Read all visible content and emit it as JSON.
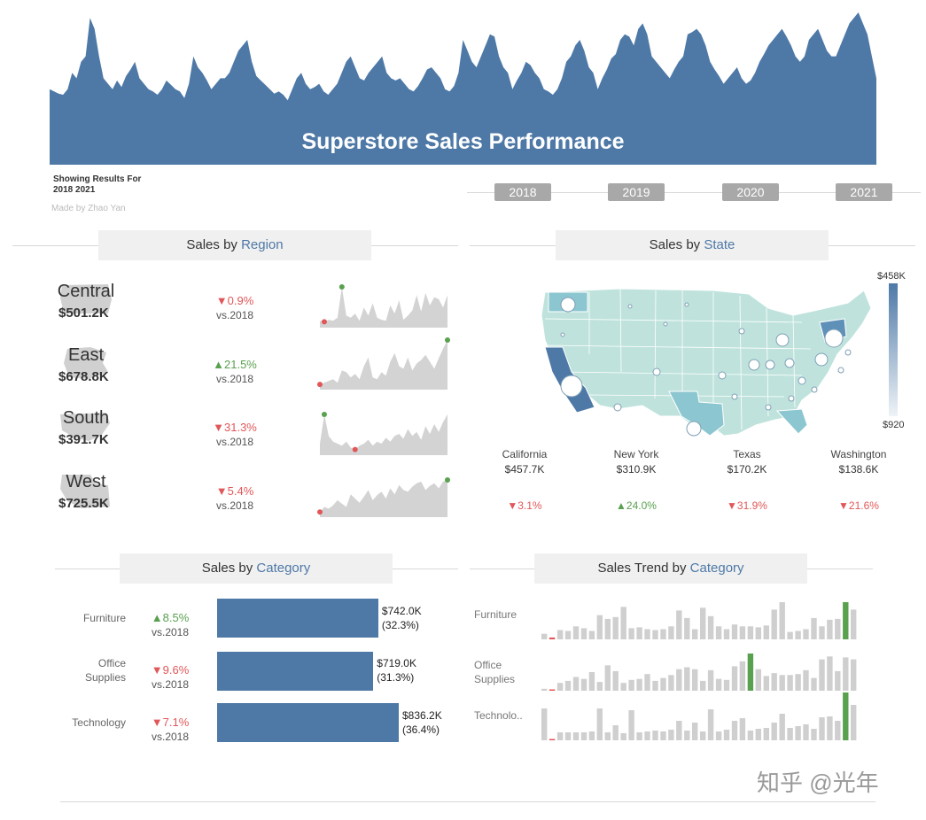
{
  "header": {
    "title": "Superstore Sales Performance",
    "showing_label": "Showing Results For",
    "showing_value": "2018 2021",
    "credit": "Made by Zhao Yan",
    "area_values": [
      30,
      28,
      26,
      25,
      30,
      45,
      40,
      55,
      60,
      95,
      85,
      60,
      40,
      35,
      30,
      38,
      32,
      42,
      48,
      55,
      40,
      35,
      30,
      28,
      25,
      30,
      38,
      34,
      30,
      28,
      22,
      35,
      60,
      50,
      45,
      38,
      30,
      35,
      40,
      40,
      45,
      55,
      65,
      70,
      75,
      55,
      42,
      38,
      34,
      30,
      26,
      28,
      25,
      20,
      30,
      40,
      45,
      35,
      30,
      32,
      35,
      28,
      25,
      30,
      35,
      45,
      55,
      60,
      50,
      40,
      38,
      45,
      50,
      55,
      60,
      45,
      40,
      38,
      40,
      35,
      30,
      28,
      33,
      40,
      48,
      50,
      45,
      40,
      30,
      28,
      33,
      45,
      75,
      65,
      55,
      50,
      60,
      70,
      80,
      78,
      60,
      50,
      45,
      30,
      38,
      45,
      55,
      52,
      45,
      40,
      30,
      28,
      25,
      30,
      40,
      55,
      60,
      70,
      75,
      65,
      50,
      45,
      30,
      40,
      48,
      58,
      62,
      75,
      80,
      78,
      70,
      85,
      90,
      80,
      60,
      55,
      50,
      45,
      40,
      48,
      55,
      60,
      80,
      82,
      85,
      80,
      70,
      55,
      48,
      42,
      35,
      40,
      45,
      50,
      40,
      35,
      38,
      45,
      55,
      62,
      70,
      75,
      80,
      85,
      78,
      70,
      60,
      55,
      60,
      75,
      80,
      85,
      75,
      65,
      60,
      60,
      70,
      80,
      90,
      95,
      100,
      90,
      80,
      60,
      40
    ]
  },
  "years": [
    "2018",
    "2019",
    "2020",
    "2021"
  ],
  "region_panel": {
    "title_prefix": "Sales by ",
    "title_accent": "Region",
    "regions": [
      {
        "name": "Central",
        "value": "$501.2K",
        "change": "▼0.9%",
        "direction": "down",
        "vs": "vs.2018",
        "spark": [
          5,
          4,
          6,
          5,
          8,
          38,
          10,
          8,
          12,
          5,
          18,
          10,
          22,
          8,
          6,
          5,
          20,
          12,
          25,
          6,
          10,
          15,
          30,
          14,
          32,
          20,
          28,
          26,
          18,
          30
        ]
      },
      {
        "name": "East",
        "value": "$678.8K",
        "change": "▲21.5%",
        "direction": "up",
        "vs": "vs.2018",
        "spark": [
          4,
          6,
          8,
          10,
          6,
          20,
          18,
          12,
          16,
          10,
          25,
          35,
          12,
          10,
          18,
          14,
          30,
          40,
          25,
          22,
          35,
          20,
          28,
          32,
          38,
          30,
          22,
          34,
          45,
          55
        ]
      },
      {
        "name": "South",
        "value": "$391.7K",
        "change": "▼31.3%",
        "direction": "down",
        "vs": "vs.2018",
        "spark": [
          10,
          40,
          18,
          12,
          10,
          8,
          12,
          6,
          4,
          8,
          10,
          14,
          8,
          12,
          10,
          16,
          12,
          18,
          20,
          15,
          25,
          18,
          22,
          14,
          28,
          20,
          30,
          22,
          32,
          40
        ]
      },
      {
        "name": "West",
        "value": "$725.5K",
        "change": "▼5.4%",
        "direction": "down",
        "vs": "vs.2018",
        "spark": [
          4,
          10,
          8,
          12,
          18,
          14,
          10,
          25,
          20,
          15,
          22,
          30,
          18,
          24,
          28,
          20,
          32,
          25,
          36,
          30,
          28,
          34,
          38,
          40,
          30,
          35,
          38,
          32,
          40,
          42
        ]
      }
    ]
  },
  "state_panel": {
    "title_prefix": "Sales by ",
    "title_accent": "State",
    "legend_max": "$458K",
    "legend_min": "$920",
    "states": [
      {
        "name": "California",
        "value": "$457.7K",
        "change": "▼3.1%",
        "direction": "down"
      },
      {
        "name": "New York",
        "value": "$310.9K",
        "change": "▲24.0%",
        "direction": "up"
      },
      {
        "name": "Texas",
        "value": "$170.2K",
        "change": "▼31.9%",
        "direction": "down"
      },
      {
        "name": "Washington",
        "value": "$138.6K",
        "change": "▼21.6%",
        "direction": "down"
      }
    ]
  },
  "category_panel": {
    "title_prefix": "Sales by ",
    "title_accent": "Category",
    "max_value": 836.2,
    "categories": [
      {
        "name_line1": "Furniture",
        "name_line2": "",
        "change": "▲8.5%",
        "direction": "up",
        "vs": "vs.2018",
        "value": 742.0,
        "value_label": "$742.0K",
        "share": "(32.3%)"
      },
      {
        "name_line1": "Office",
        "name_line2": "Supplies",
        "change": "▼9.6%",
        "direction": "down",
        "vs": "vs.2018",
        "value": 719.0,
        "value_label": "$719.0K",
        "share": "(31.3%)"
      },
      {
        "name_line1": "Technology",
        "name_line2": "",
        "change": "▼7.1%",
        "direction": "down",
        "vs": "vs.2018",
        "value": 836.2,
        "value_label": "$836.2K",
        "share": "(36.4%)"
      }
    ]
  },
  "trend_panel": {
    "title_prefix": "Sales Trend by ",
    "title_accent": "Category",
    "rows": [
      {
        "label_line1": "Furniture",
        "label_line2": "",
        "values": [
          6,
          2,
          10,
          9,
          14,
          12,
          9,
          26,
          22,
          24,
          35,
          12,
          13,
          11,
          10,
          11,
          14,
          31,
          23,
          11,
          34,
          25,
          14,
          11,
          16,
          14,
          14,
          13,
          15,
          32,
          40,
          8,
          9,
          11,
          23,
          14,
          21,
          22,
          40,
          32
        ],
        "min_index": 1,
        "max_index": 38
      },
      {
        "label_line1": "Office",
        "label_line2": "Supplies",
        "values": [
          2,
          1,
          8,
          10,
          14,
          12,
          19,
          9,
          26,
          20,
          8,
          11,
          12,
          17,
          10,
          13,
          16,
          22,
          24,
          22,
          10,
          21,
          12,
          11,
          25,
          30,
          38,
          22,
          15,
          18,
          16,
          16,
          17,
          21,
          13,
          32,
          35,
          20,
          34,
          32
        ],
        "min_index": 1,
        "max_index": 26
      },
      {
        "label_line1": "Technolo..",
        "label_line2": "",
        "values": [
          36,
          1,
          9,
          9,
          9,
          9,
          10,
          36,
          9,
          17,
          8,
          34,
          9,
          10,
          11,
          10,
          12,
          22,
          11,
          20,
          10,
          35,
          10,
          12,
          22,
          25,
          11,
          13,
          14,
          20,
          30,
          14,
          16,
          18,
          13,
          26,
          27,
          22,
          54,
          40
        ],
        "min_index": 1,
        "max_index": 38
      }
    ]
  },
  "watermark": "知乎 @光年",
  "colors": {
    "accent": "#4e79a7",
    "negative": "#e15759",
    "positive": "#59a14f",
    "spark_fill": "#d3d3d3",
    "bar_gray": "#cfcfcf"
  }
}
